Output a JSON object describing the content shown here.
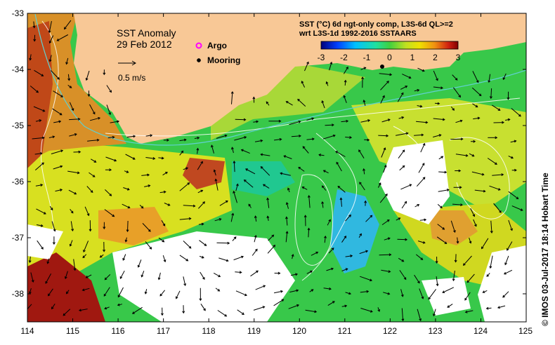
{
  "map": {
    "title": "SST Anomaly",
    "date": "29 Feb 2012",
    "scale_label": "0.5 m/s",
    "legend": {
      "argo": "Argo",
      "mooring": "Mooring"
    },
    "header_line1": "SST (°C) 6d ngt-only comp, L3S-6d QL>=2",
    "header_line2": "wrt L3S-1d 1992-2016 SSTAARS",
    "credit": "©  IMOS 03-Jul-2017 18:14 Hobart Time",
    "colorbar_ticks": [
      "-3",
      "-2",
      "-1",
      "0",
      "1",
      "2",
      "3"
    ],
    "colorbar_range": [
      -3,
      3
    ],
    "lon_ticks": [
      "114",
      "115",
      "116",
      "117",
      "118",
      "119",
      "120",
      "121",
      "122",
      "123",
      "124",
      "125"
    ],
    "lat_ticks": [
      "-33",
      "-34",
      "-35",
      "-36",
      "-37",
      "-38"
    ],
    "lon_range": [
      114,
      125
    ],
    "lat_range": [
      -38.5,
      -33
    ],
    "colors": {
      "land": "#f8c896",
      "ocean_green": "#30c040",
      "ocean_yellow": "#e8e800",
      "ocean_cyan": "#20c8e0",
      "ocean_orange": "#e8a020",
      "ocean_red": "#c03010",
      "argo": "#ff00ff",
      "mooring": "#000000"
    }
  }
}
